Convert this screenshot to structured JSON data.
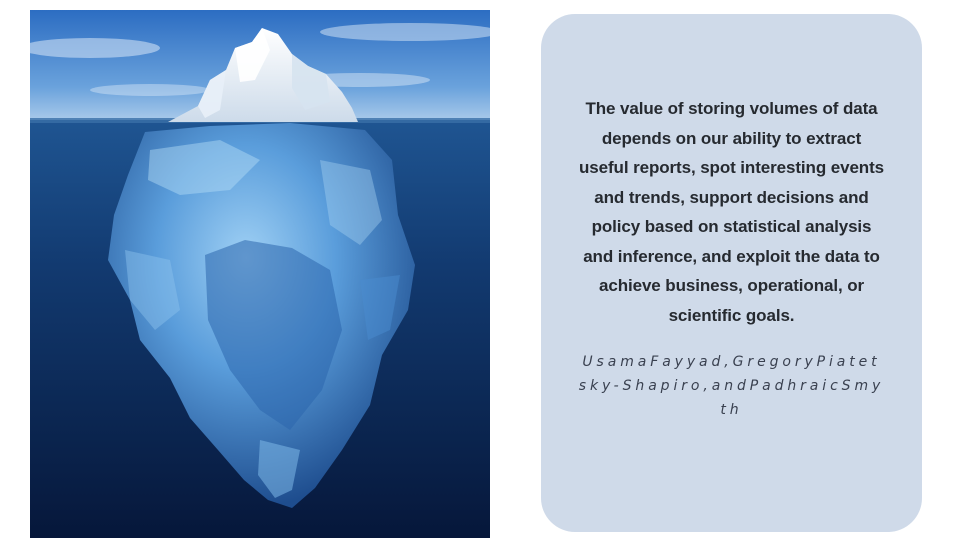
{
  "slide": {
    "image": {
      "subject": "iceberg",
      "colors": {
        "sky_top": "#2f6fc1",
        "sky_bottom": "#9fc3e8",
        "water_top": "#1d4f8c",
        "water_deep": "#071a3d",
        "ice_above": "#eef4fa",
        "ice_below": "#5ea3dd"
      }
    },
    "quote": {
      "text": "The value of storing volumes of data depends on our ability to extract useful reports, spot interesting events and trends, support decisions and policy based on statistical analysis and inference, and exploit the data to achieve business, operational, or scientific goals.",
      "attribution": "UsamaFayyad,GregoryPiatetsky-Shapiro,andPadhraicSmyth",
      "box_color": "#cfdae9"
    }
  }
}
